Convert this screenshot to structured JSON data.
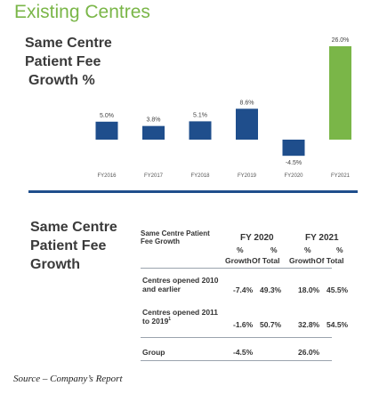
{
  "page": {
    "title": "Existing Centres",
    "source": "Source – Company’s Report"
  },
  "chart_data": {
    "type": "bar",
    "title_lines": [
      "Same Centre",
      "Patient Fee",
      "Growth %"
    ],
    "categories": [
      "FY2016",
      "FY2017",
      "FY2018",
      "FY2019",
      "FY2020",
      "FY2021"
    ],
    "values": [
      5.0,
      3.8,
      5.1,
      8.6,
      -4.5,
      26.0
    ],
    "data_labels": [
      "5.0%",
      "3.8%",
      "5.1%",
      "8.6%",
      "-4.5%",
      "26.0%"
    ],
    "colors": [
      "#1f4e8c",
      "#1f4e8c",
      "#1f4e8c",
      "#1f4e8c",
      "#1f4e8c",
      "#7ab648"
    ],
    "ylim": [
      -4.5,
      26.0
    ],
    "grid": false
  },
  "table": {
    "section_title_lines": [
      "Same Centre",
      "Patient Fee",
      "Growth"
    ],
    "header_label_lines": [
      "Same Centre Patient",
      "Fee Growth"
    ],
    "year_headers": [
      "FY 2020",
      "FY 2021"
    ],
    "sub_headers": [
      {
        "top": "%",
        "bottom": "Growth"
      },
      {
        "top": "%",
        "bottom": "Of Total"
      },
      {
        "top": "%",
        "bottom": "Growth"
      },
      {
        "top": "%",
        "bottom": "Of Total"
      }
    ],
    "rows": [
      {
        "label_lines": [
          "Centres opened 2010",
          "and earlier"
        ],
        "sup": "",
        "values": [
          "-7.4%",
          "49.3%",
          "18.0%",
          "45.5%"
        ]
      },
      {
        "label_lines": [
          "Centres opened 2011",
          "to 2019"
        ],
        "sup": "1",
        "values": [
          "-1.6%",
          "50.7%",
          "32.8%",
          "54.5%"
        ]
      },
      {
        "label_lines": [
          "Group"
        ],
        "sup": "",
        "values": [
          "-4.5%",
          "",
          "26.0%",
          ""
        ]
      }
    ]
  }
}
